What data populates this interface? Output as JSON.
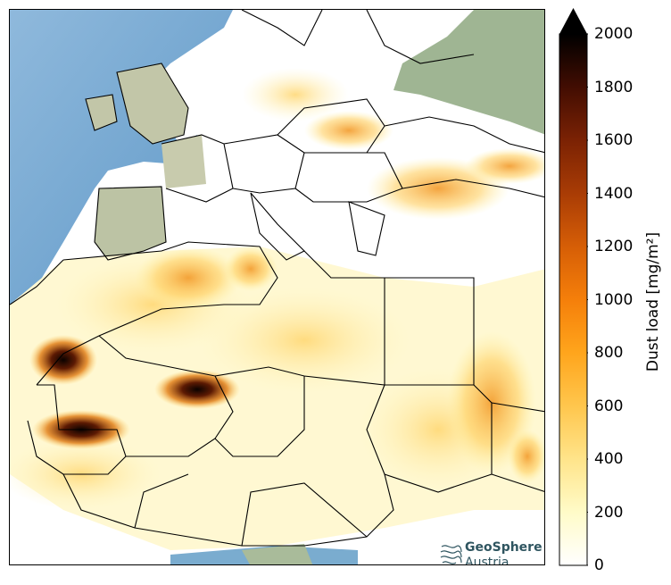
{
  "map": {
    "region": "Europe and North Africa",
    "land_color": "#b7c4a8",
    "ocean_color": "#6aa3cf",
    "border_color": "#000000"
  },
  "colorbar": {
    "label": "Dust load [mg/m²]",
    "min": 0,
    "max": 2000,
    "ticks": [
      "0",
      "200",
      "400",
      "600",
      "800",
      "1000",
      "1200",
      "1400",
      "1600",
      "1800",
      "2000"
    ],
    "colors": [
      "#ffffff",
      "#fffbc8",
      "#ffe48a",
      "#ffc64d",
      "#ffa51c",
      "#f57f0a",
      "#d65e06",
      "#a93c05",
      "#7b2204",
      "#420d02",
      "#000000"
    ],
    "extend": "max"
  },
  "logo": {
    "name": "GeoSphere",
    "sub": "Austria"
  }
}
